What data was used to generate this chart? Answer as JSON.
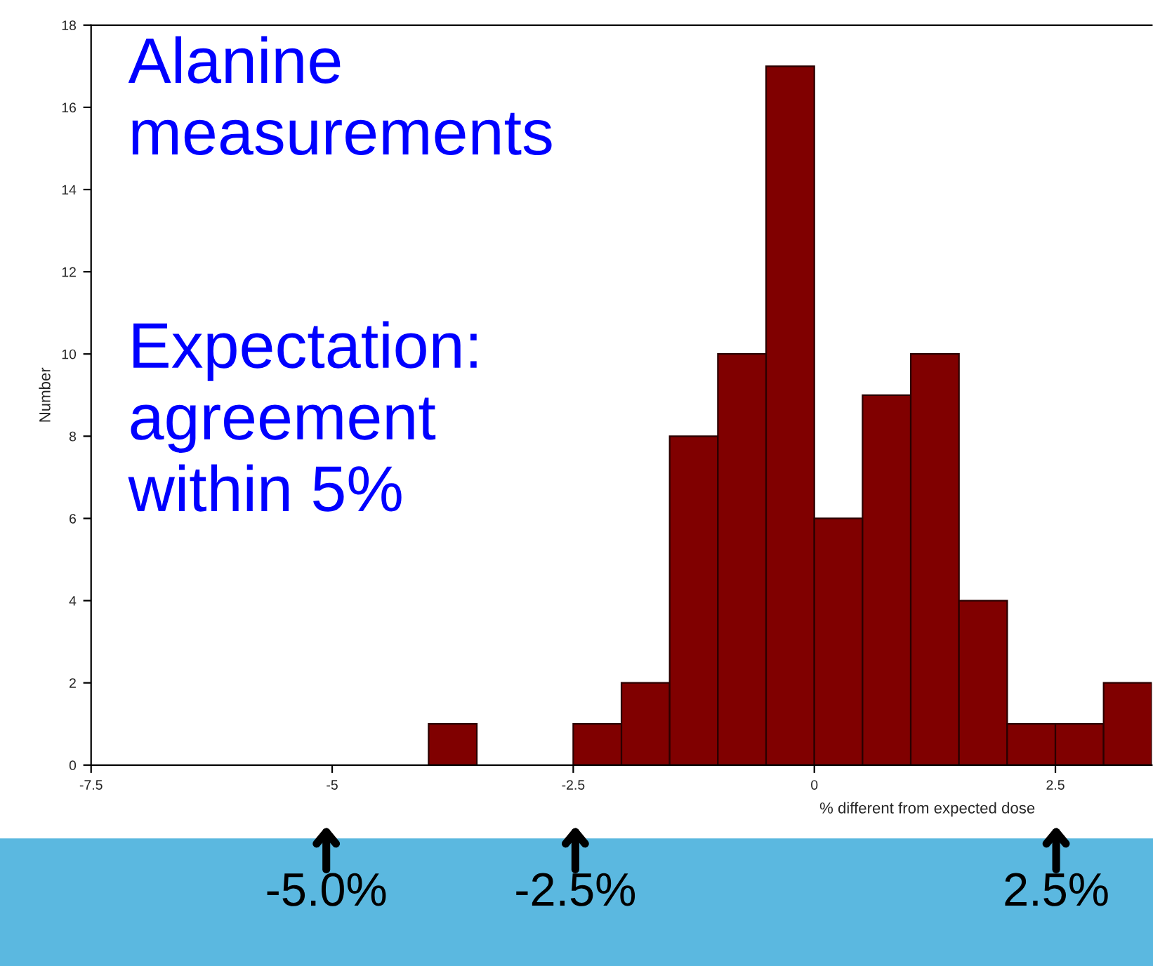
{
  "chart_data": {
    "type": "histogram",
    "bins": [
      -4,
      -3.5,
      -3,
      -2.5,
      -2,
      -1.5,
      -1,
      -0.5,
      0,
      0.5,
      1,
      1.5,
      2,
      2.5,
      3,
      3.5
    ],
    "values": [
      1,
      0,
      0,
      1,
      2,
      8,
      10,
      17,
      6,
      9,
      10,
      4,
      1,
      1,
      2
    ],
    "color": "#800000",
    "xlabel": "% different from expected dose",
    "ylabel": "Number",
    "xlim": [
      -7.5,
      3.5
    ],
    "xticks": [
      -7.5,
      -5,
      -2.5,
      0,
      2.5
    ],
    "ylim": [
      0,
      18
    ],
    "yticks": [
      0,
      2,
      4,
      6,
      8,
      10,
      12,
      14,
      16,
      18
    ],
    "grid": false,
    "legend": false,
    "annotations": [
      "Alanine\nmeasurements",
      "Expectation:\nagreement\nwithin 5%",
      "-5.0%",
      "-2.5%",
      "2.5%"
    ]
  }
}
